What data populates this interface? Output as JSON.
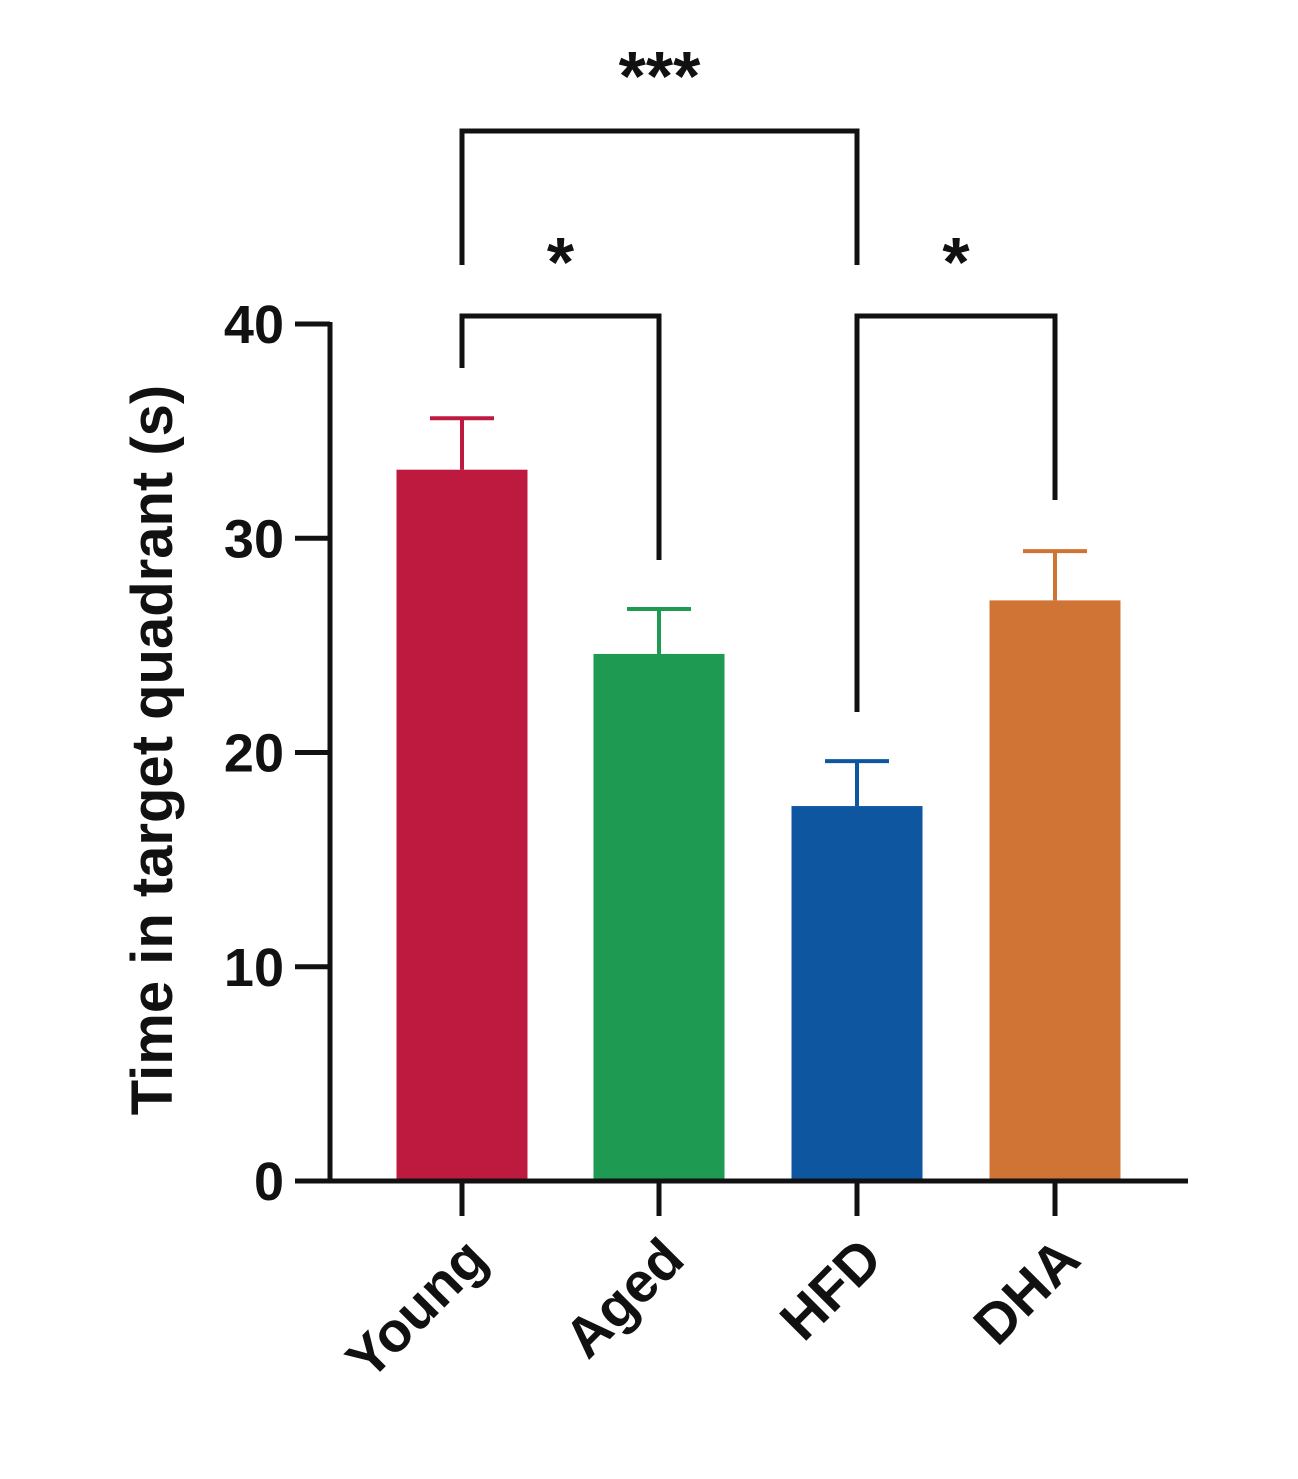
{
  "chart_data": {
    "type": "bar",
    "title": "",
    "xlabel": "",
    "ylabel": "Time  in target quadrant  (s)",
    "ylim": [
      0,
      40
    ],
    "yticks": [
      0,
      10,
      20,
      30,
      40
    ],
    "categories": [
      "Young",
      "Aged",
      "HFD",
      "DHA"
    ],
    "values": [
      33.2,
      24.6,
      17.5,
      27.1
    ],
    "error_upper": [
      35.6,
      26.7,
      19.6,
      29.4
    ],
    "colors": [
      "#be1a40",
      "#1e9a52",
      "#0f56a0",
      "#cf7434"
    ],
    "grid": false,
    "significance": [
      {
        "from": "Young",
        "to": "HFD",
        "label": "***"
      },
      {
        "from": "Young",
        "to": "Aged",
        "label": "*"
      },
      {
        "from": "HFD",
        "to": "DHA",
        "label": "*"
      }
    ]
  }
}
